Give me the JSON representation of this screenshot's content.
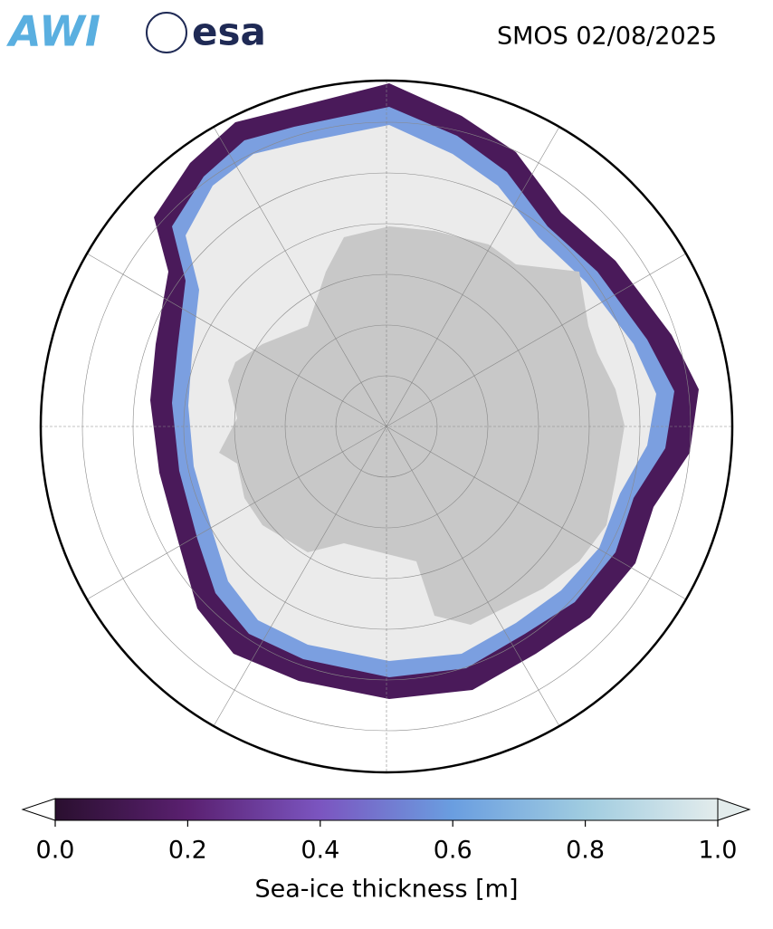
{
  "header": {
    "logos": [
      "AWI",
      "esa"
    ],
    "title": "SMOS 02/08/2025"
  },
  "colorbar": {
    "label": "Sea-ice thickness [m]",
    "lim": [
      0,
      1
    ],
    "ticks": [
      {
        "value": 0,
        "label": "0.0"
      },
      {
        "value": 0.2,
        "label": "0.2"
      },
      {
        "value": 0.4,
        "label": "0.4"
      },
      {
        "value": 0.6,
        "label": "0.6"
      },
      {
        "value": 0.8,
        "label": "0.8"
      },
      {
        "value": 1,
        "label": "1.0"
      }
    ],
    "colors": [
      "#2a0f2f",
      "#5a2070",
      "#7b55c0",
      "#6a9ee0",
      "#a0cce0",
      "#e3ecec"
    ]
  }
}
